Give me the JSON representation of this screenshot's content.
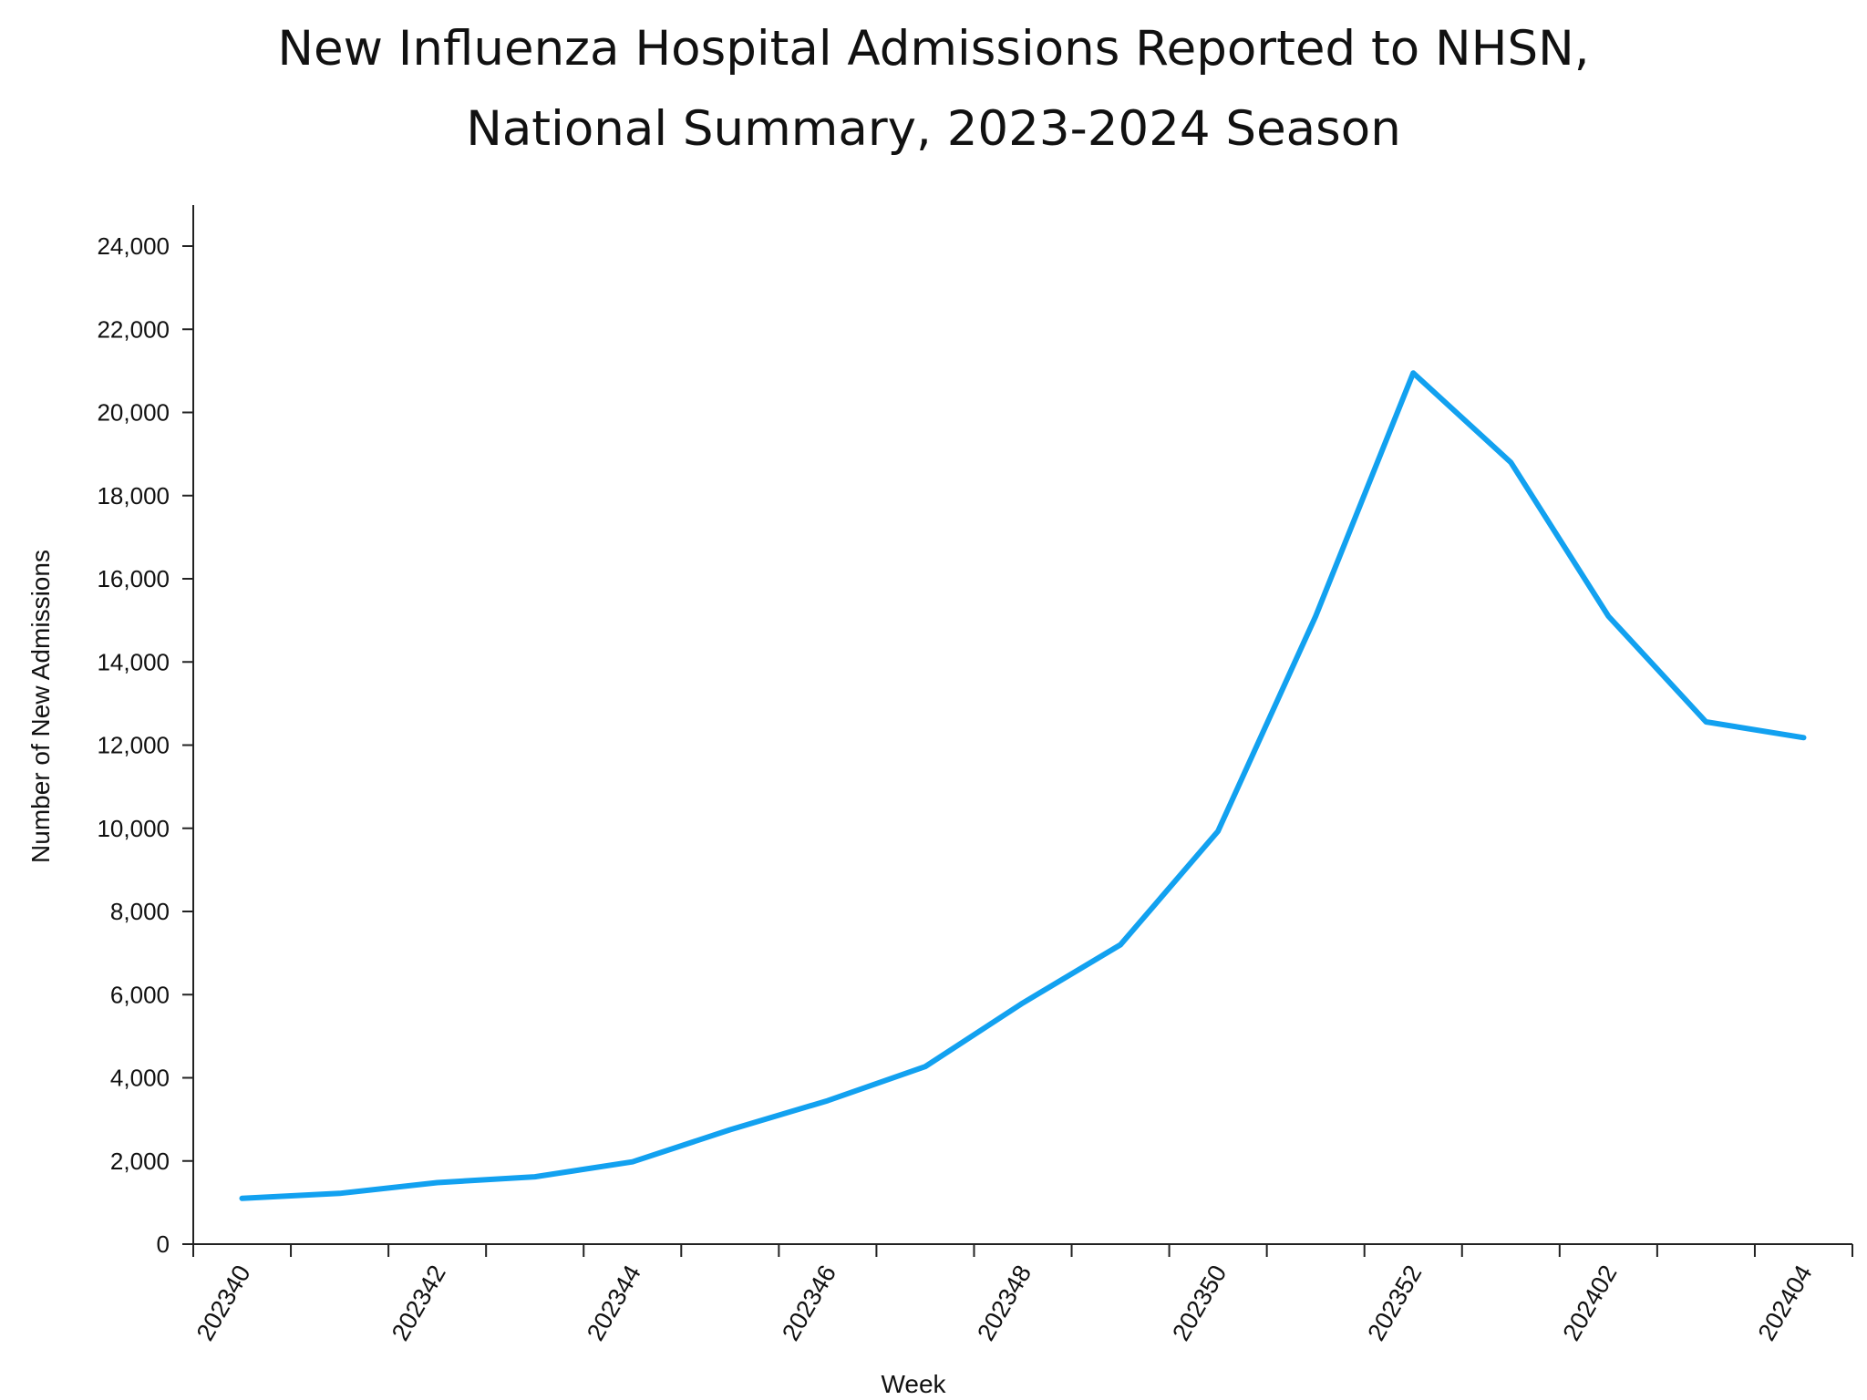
{
  "chart_data": {
    "type": "line",
    "title_lines": [
      "New Influenza Hospital Admissions Reported to NHSN,",
      "National Summary, 2023-2024 Season"
    ],
    "xlabel": "Week",
    "ylabel": "Number of New Admissions",
    "ylim": [
      0,
      24000
    ],
    "yticks": [
      0,
      2000,
      4000,
      6000,
      8000,
      10000,
      12000,
      14000,
      16000,
      18000,
      20000,
      22000,
      24000
    ],
    "ytick_labels": [
      "0",
      "2,000",
      "4,000",
      "6,000",
      "8,000",
      "10,000",
      "12,000",
      "14,000",
      "16,000",
      "18,000",
      "20,000",
      "22,000",
      "24,000"
    ],
    "x": [
      "202340",
      "202341",
      "202342",
      "202343",
      "202344",
      "202345",
      "202346",
      "202347",
      "202348",
      "202349",
      "202350",
      "202351",
      "202352",
      "202401",
      "202402",
      "202403",
      "202404"
    ],
    "xtick_labels": [
      "202340",
      "",
      "202342",
      "",
      "202344",
      "",
      "202346",
      "",
      "202348",
      "",
      "202350",
      "",
      "202352",
      "",
      "202402",
      "",
      "202404"
    ],
    "series": [
      {
        "values": [
          1100,
          1220,
          1480,
          1620,
          1980,
          2750,
          3450,
          4270,
          5800,
          7200,
          9930,
          15100,
          20950,
          18800,
          15100,
          12560,
          12180
        ],
        "color": "#12a1f0"
      }
    ],
    "grid": false,
    "legend": "none"
  }
}
